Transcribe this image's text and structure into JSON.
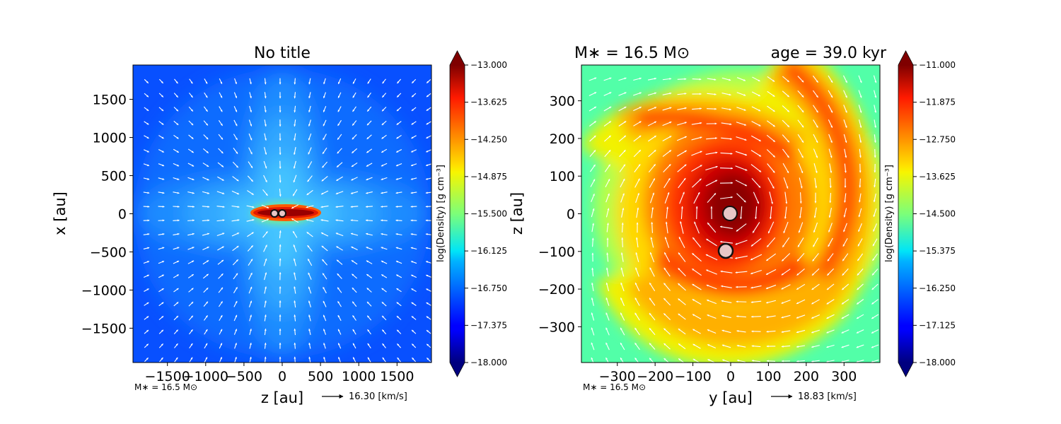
{
  "chart_data": [
    {
      "type": "heatmap",
      "title": "No title",
      "xlabel": "z [au]",
      "ylabel": "x [au]",
      "xlim": [
        -1950,
        1950
      ],
      "ylim": [
        -1950,
        1950
      ],
      "xticks": [
        -1500,
        -1000,
        -500,
        0,
        500,
        1000,
        1500
      ],
      "yticks": [
        -1500,
        -1000,
        -500,
        0,
        500,
        1000,
        1500
      ],
      "xtick_labels": [
        "−1500",
        "−1000",
        "−500",
        "0",
        "500",
        "1000",
        "1500"
      ],
      "ytick_labels": [
        "−1500",
        "−1000",
        "−500",
        "0",
        "500",
        "1000",
        "1500"
      ],
      "colorbar": {
        "label": "log(Density) [g cm⁻³]",
        "min": -18.0,
        "max": -13.0,
        "ticks": [
          "−13.000",
          "−13.625",
          "−14.250",
          "−14.875",
          "−15.500",
          "−16.125",
          "−16.750",
          "−17.375",
          "−18.000"
        ],
        "colormap": "jet",
        "extend": "both"
      },
      "stars_au": [
        [
          -100,
          0
        ],
        [
          0,
          0
        ]
      ],
      "mass_note": "M∗ = 16.5 M⊙",
      "quiver_key": "16.30 [km/s]"
    },
    {
      "type": "heatmap",
      "title_left": "M∗ = 16.5 M⊙",
      "title_right": "age = 39.0 kyr",
      "xlabel": "y [au]",
      "ylabel": "z [au]",
      "xlim": [
        -395,
        395
      ],
      "ylim": [
        -395,
        395
      ],
      "xticks": [
        -300,
        -200,
        -100,
        0,
        100,
        200,
        300
      ],
      "yticks": [
        -300,
        -200,
        -100,
        0,
        100,
        200,
        300
      ],
      "xtick_labels": [
        "−300",
        "−200",
        "−100",
        "0",
        "100",
        "200",
        "300"
      ],
      "ytick_labels": [
        "−300",
        "−200",
        "−100",
        "0",
        "100",
        "200",
        "300"
      ],
      "colorbar": {
        "label": "log(Density) [g cm⁻³]",
        "min": -18.0,
        "max": -11.0,
        "ticks": [
          "−11.000",
          "−11.875",
          "−12.750",
          "−13.625",
          "−14.500",
          "−15.375",
          "−16.250",
          "−17.125",
          "−18.000"
        ],
        "colormap": "jet",
        "extend": "both"
      },
      "stars_au": [
        [
          0,
          0
        ],
        [
          -15,
          -100
        ]
      ],
      "mass_note": "M∗ = 16.5 M⊙",
      "quiver_key": "18.83 [km/s]"
    }
  ]
}
